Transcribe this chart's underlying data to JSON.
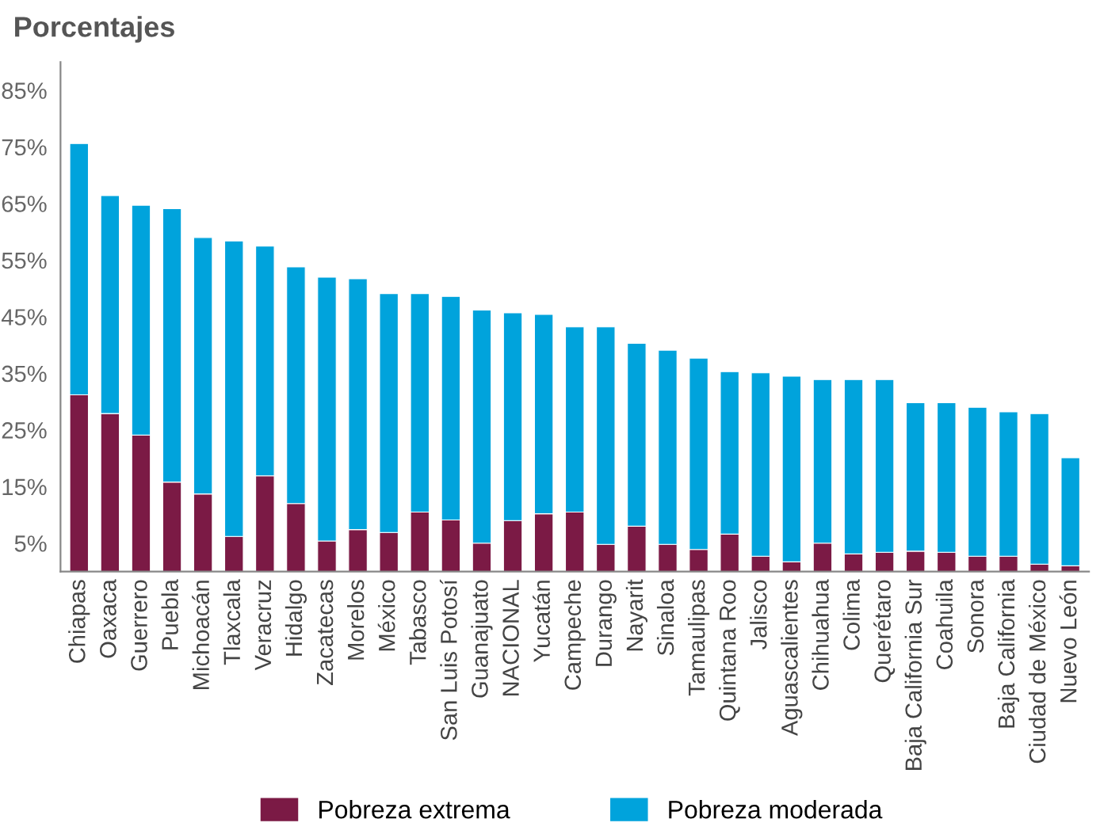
{
  "chart_data": {
    "type": "bar",
    "title": "Porcentajes",
    "stacked": true,
    "legend": "bottom",
    "grid": false,
    "categories": [
      "Chiapas",
      "Oaxaca",
      "Guerrero",
      "Puebla",
      "Michoacán",
      "Tlaxcala",
      "Veracruz",
      "Hidalgo",
      "Zacatecas",
      "Morelos",
      "México",
      "Tabasco",
      "San Luis Potosí",
      "Guanajuato",
      "NACIONAL",
      "Yucatán",
      "Campeche",
      "Durango",
      "Nayarit",
      "Sinaloa",
      "Tamaulipas",
      "Quintana Roo",
      "Jalisco",
      "Aguascalientes",
      "Chihuahua",
      "Colima",
      "Querétaro",
      "Baja California Sur",
      "Coahuila",
      "Sonora",
      "Baja California",
      "Ciudad de México",
      "Nuevo León"
    ],
    "series": [
      {
        "name": "Pobreza extrema",
        "color": "#7b1a45",
        "values": [
          31.2,
          27.9,
          24.1,
          15.8,
          13.7,
          6.2,
          16.9,
          12.0,
          5.4,
          7.4,
          6.9,
          10.5,
          9.1,
          5.0,
          9.0,
          10.2,
          10.5,
          4.8,
          8.0,
          4.8,
          3.9,
          6.6,
          2.7,
          1.7,
          5.0,
          3.1,
          3.4,
          3.6,
          3.4,
          2.7,
          2.7,
          1.3,
          1.0
        ]
      },
      {
        "name": "Pobreza moderada",
        "color": "#00a3dc",
        "values": [
          44.4,
          38.5,
          40.6,
          48.3,
          45.3,
          52.2,
          40.6,
          41.8,
          46.6,
          44.3,
          42.2,
          38.6,
          39.5,
          41.2,
          36.7,
          35.2,
          32.7,
          38.4,
          32.3,
          34.3,
          33.8,
          28.7,
          32.4,
          32.8,
          28.9,
          30.8,
          30.5,
          26.2,
          26.4,
          26.3,
          25.5,
          26.6,
          19.1
        ]
      }
    ],
    "ylim": [
      0,
      90
    ],
    "yticks": [
      {
        "value": 5,
        "label": "5%"
      },
      {
        "value": 15,
        "label": "15%"
      },
      {
        "value": 25,
        "label": "25%"
      },
      {
        "value": 35,
        "label": "35%"
      },
      {
        "value": 45,
        "label": "45%"
      },
      {
        "value": 55,
        "label": "55%"
      },
      {
        "value": 65,
        "label": "65%"
      },
      {
        "value": 75,
        "label": "75%"
      },
      {
        "value": 85,
        "label": "85%"
      }
    ]
  }
}
